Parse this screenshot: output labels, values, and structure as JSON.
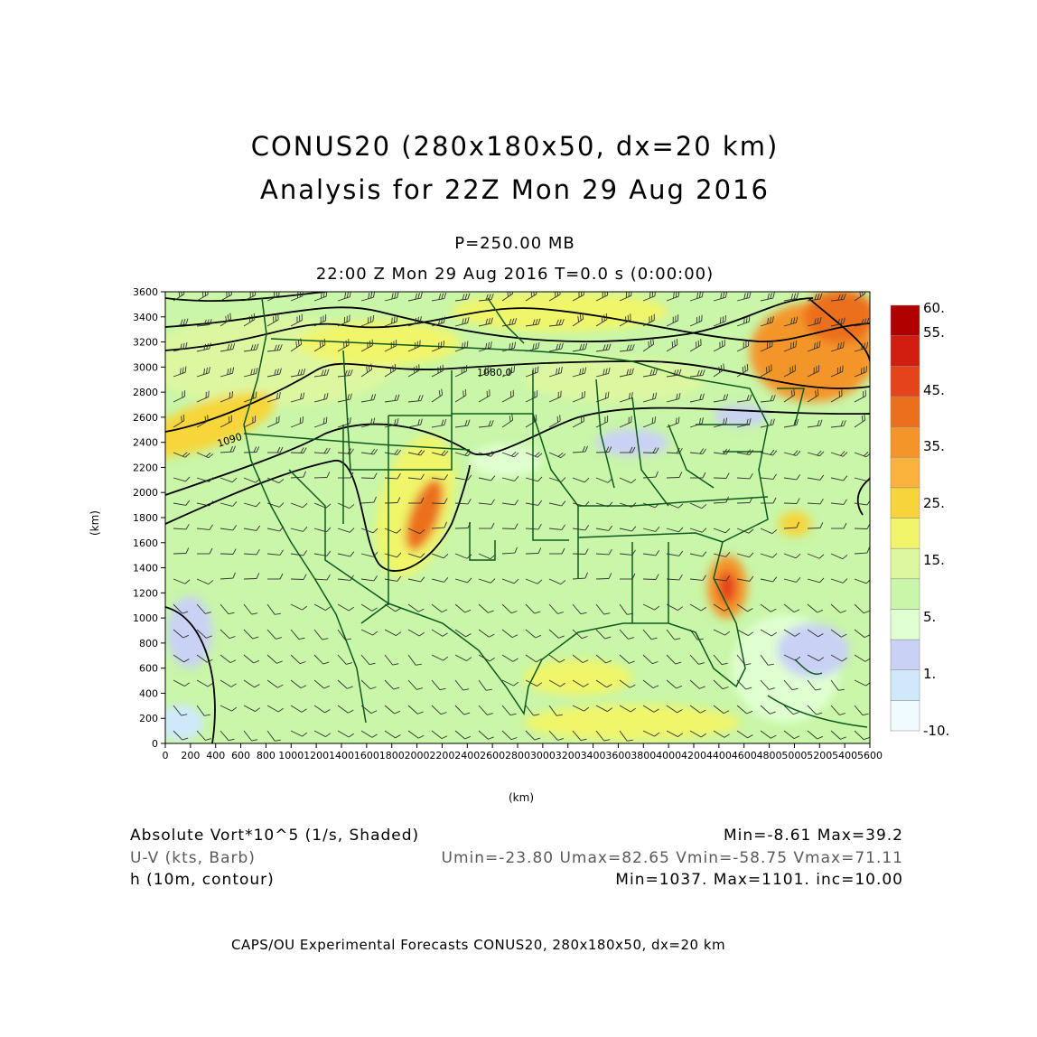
{
  "title_line1": "CONUS20 (280x180x50, dx=20 km)",
  "title_line2": "Analysis for 22Z Mon 29 Aug 2016",
  "pressure_label": "P=250.00 MB",
  "time_label": "22:00 Z Mon 29 Aug 2016    T=0.0 s (0:00:00)",
  "axes": {
    "y_label": "(km)",
    "x_label": "(km)",
    "y_ticks": [
      "0",
      "200",
      "400",
      "600",
      "800",
      "1000",
      "1200",
      "1400",
      "1600",
      "1800",
      "2000",
      "2200",
      "2400",
      "2600",
      "2800",
      "3000",
      "3200",
      "3400",
      "3600"
    ],
    "x_ticks": [
      "0",
      "200",
      "400",
      "600",
      "800",
      "1000",
      "1200",
      "1400",
      "1600",
      "1800",
      "2000",
      "2200",
      "2400",
      "2600",
      "2800",
      "3000",
      "3200",
      "3400",
      "3600",
      "3800",
      "4000",
      "4200",
      "4400",
      "4600",
      "4800",
      "5000",
      "5200",
      "5400",
      "5600"
    ],
    "x_range": [
      0,
      5600
    ],
    "y_range": [
      0,
      3600
    ]
  },
  "colorbar": {
    "labels": [
      "60.",
      "55.",
      "45.",
      "35.",
      "25.",
      "15.",
      "5.",
      "1.",
      "-10."
    ],
    "colors": [
      "#f0fbff",
      "#cfe9fb",
      "#c9d1f5",
      "#e0ffd0",
      "#c9f6a8",
      "#ddf7a0",
      "#f0f56a",
      "#f7d53a",
      "#fbb23c",
      "#f4952a",
      "#ec6f1e",
      "#e5431a",
      "#d21e10",
      "#b00000"
    ]
  },
  "contour_labels": [
    "1080.0",
    "1090"
  ],
  "field_info": {
    "shaded": "Absolute Vort*10^5 (1/s, Shaded)",
    "shaded_stats": "Min=-8.61 Max=39.2",
    "barb": "U-V (kts, Barb)",
    "barb_stats": "Umin=-23.80 Umax=82.65 Vmin=-58.75 Vmax=71.11",
    "contour": "h (10m, contour)",
    "contour_stats": "Min=1037. Max=1101. inc=10.00"
  },
  "footer": "CAPS/OU Experimental Forecasts  CONUS20, 280x180x50, dx=20 km",
  "colors": {
    "background": "#c9f6a8",
    "boundaries": "#0c5a1e",
    "contours": "#000000"
  }
}
